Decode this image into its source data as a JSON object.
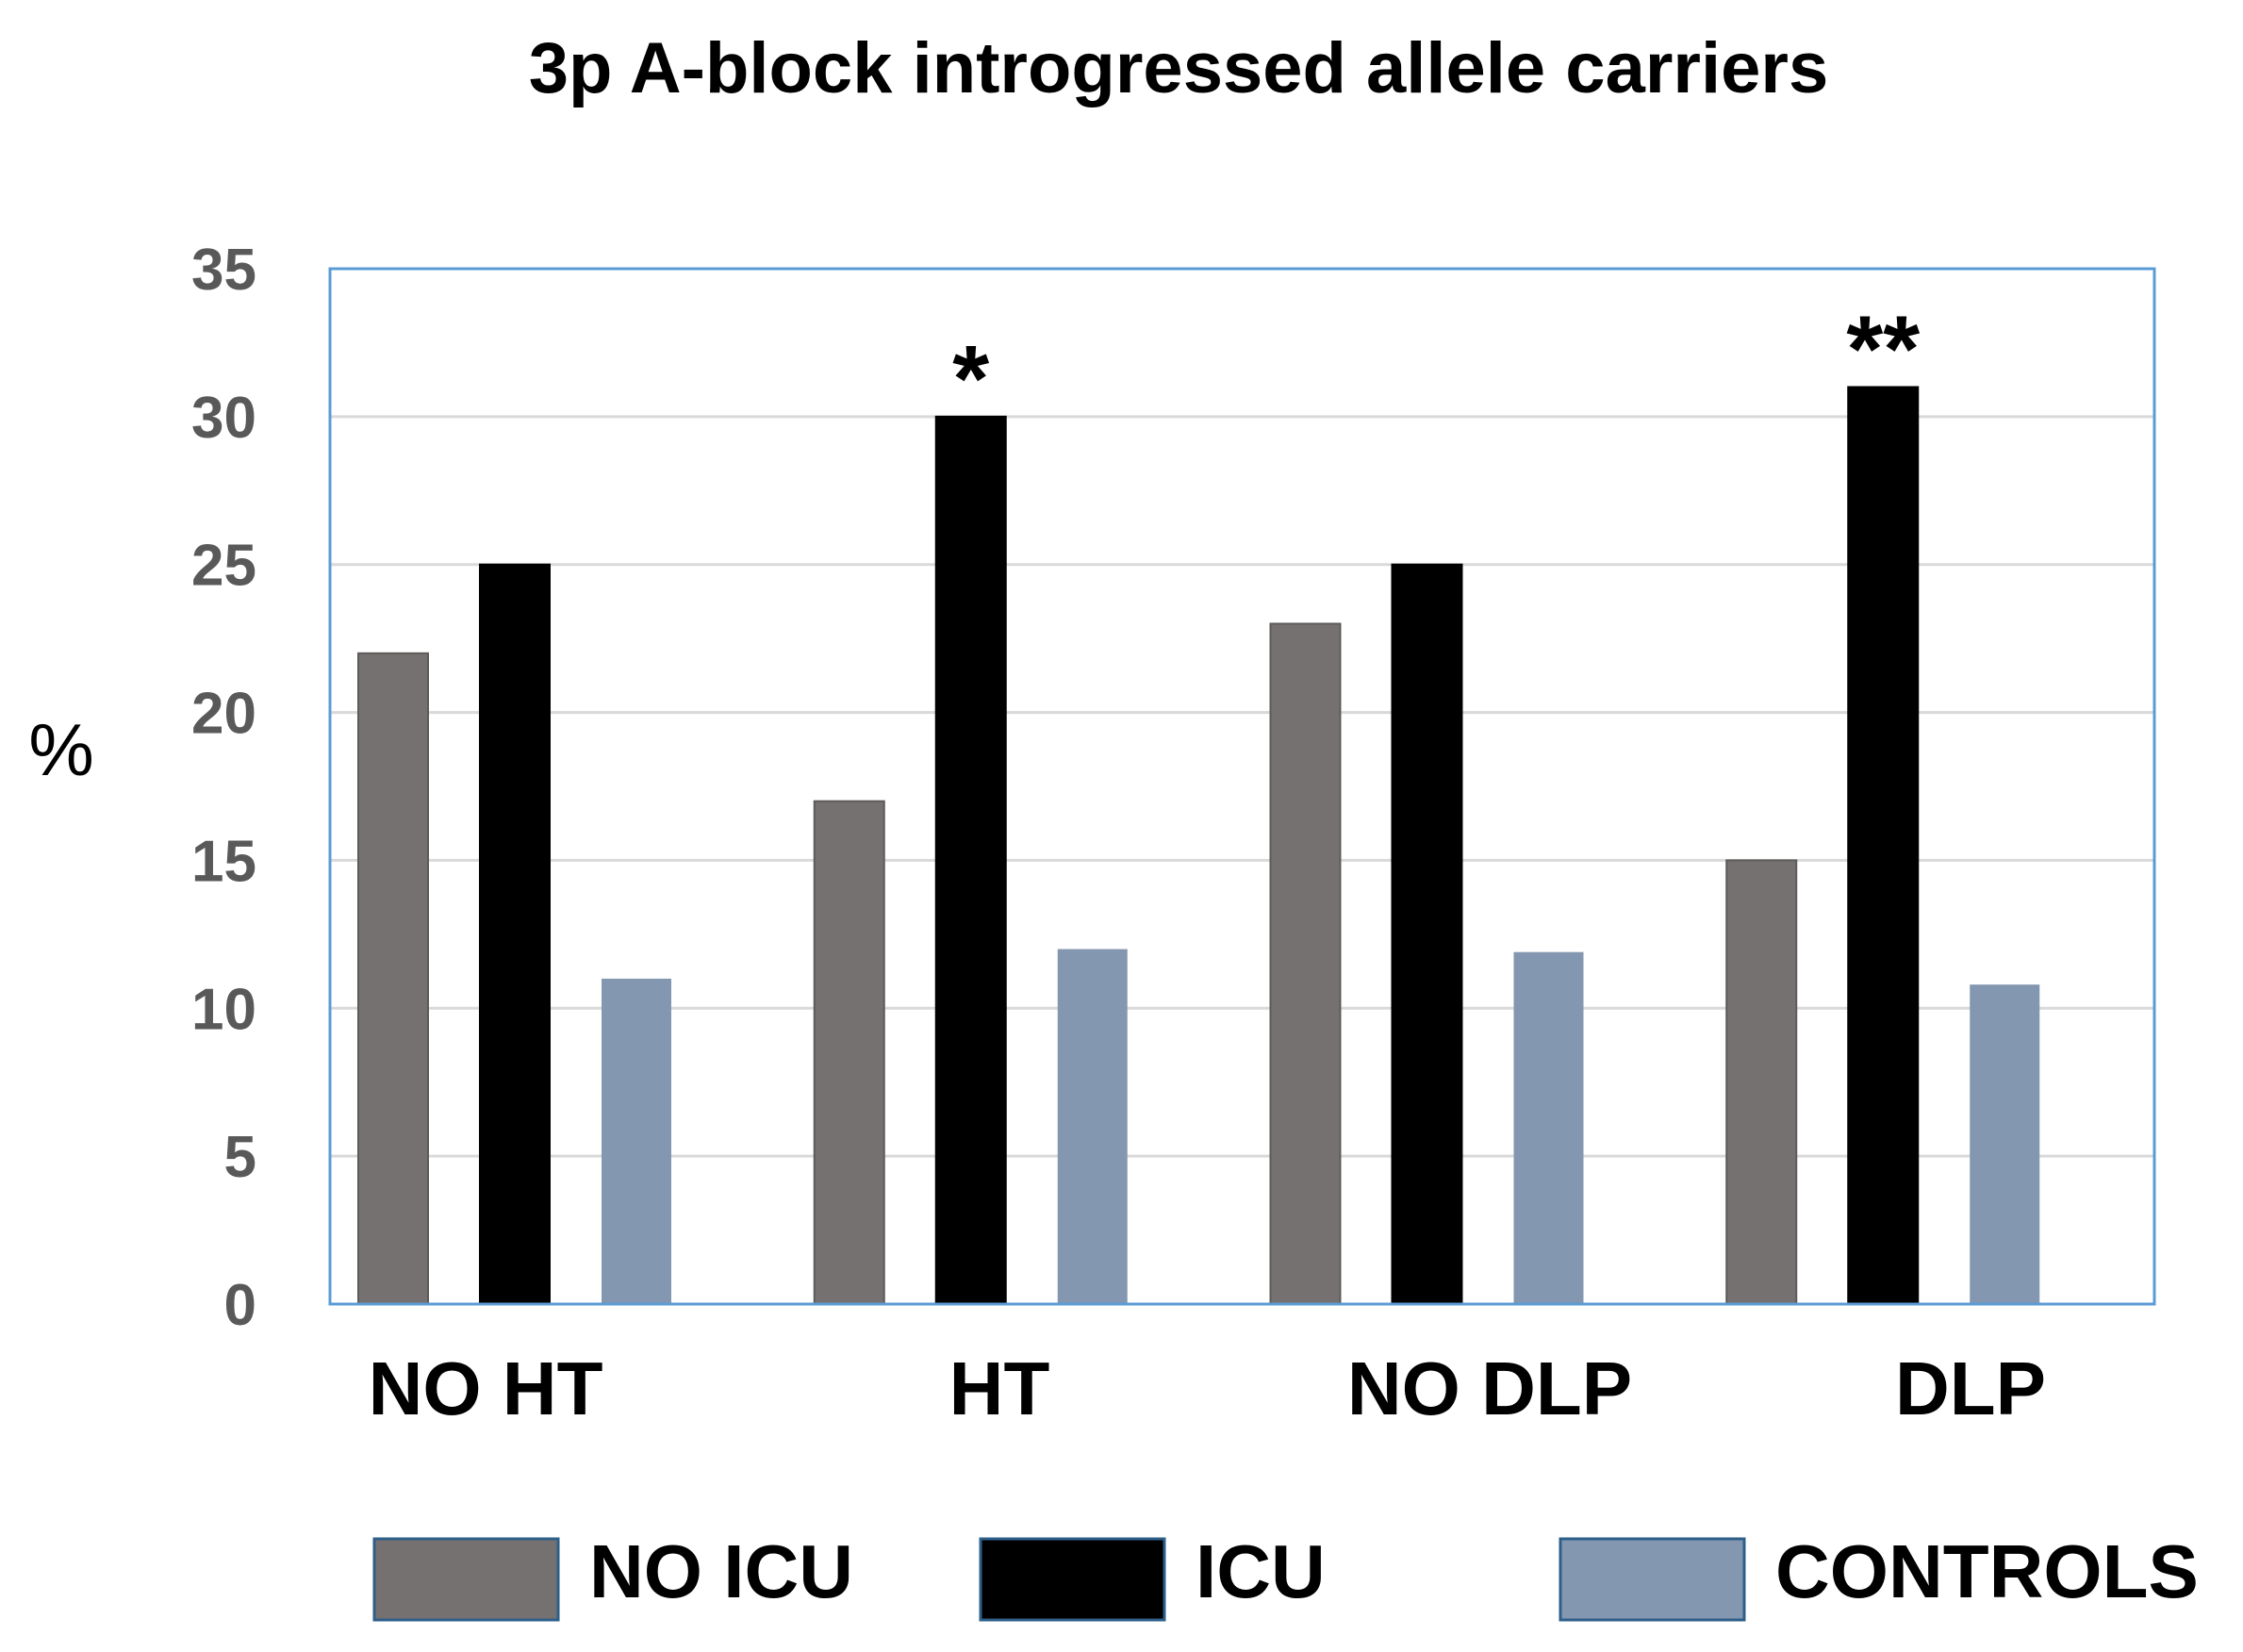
{
  "chart_data": {
    "type": "bar",
    "title": "3p A-block introgressed allele carriers",
    "xlabel": "",
    "ylabel": "%",
    "ylim": [
      0,
      35
    ],
    "yticks": [
      0,
      5,
      10,
      15,
      20,
      25,
      30,
      35
    ],
    "grid": true,
    "legend_position": "bottom",
    "categories": [
      "NO HT",
      "HT",
      "NO DLP",
      "DLP"
    ],
    "series": [
      {
        "name": "NO ICU",
        "color": "#767171",
        "values": [
          22,
          17,
          23,
          15
        ]
      },
      {
        "name": "ICU",
        "color": "#000000",
        "values": [
          25,
          30,
          25,
          31
        ]
      },
      {
        "name": "CONTROLS",
        "color": "#8497b0",
        "values": [
          11,
          12,
          11.9,
          10.8
        ]
      }
    ],
    "annotations": [
      {
        "category": "HT",
        "series": "ICU",
        "text": "*"
      },
      {
        "category": "DLP",
        "series": "ICU",
        "text": "**"
      }
    ]
  }
}
